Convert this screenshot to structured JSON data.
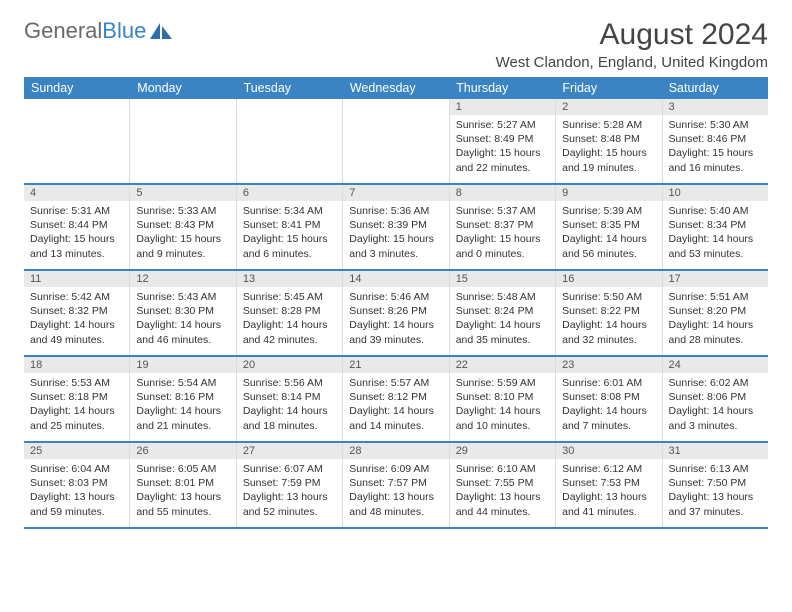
{
  "brand": {
    "part1": "General",
    "part2": "Blue"
  },
  "title": "August 2024",
  "location": "West Clandon, England, United Kingdom",
  "colors": {
    "header_bg": "#3a84c4",
    "daynum_bg": "#e9e9e9",
    "divider": "#3a84c4",
    "cell_border": "#dcdcdc",
    "text": "#333333",
    "title_text": "#444444"
  },
  "weekdays": [
    "Sunday",
    "Monday",
    "Tuesday",
    "Wednesday",
    "Thursday",
    "Friday",
    "Saturday"
  ],
  "weeks": [
    [
      {
        "n": "",
        "sr": "",
        "ss": "",
        "dl": ""
      },
      {
        "n": "",
        "sr": "",
        "ss": "",
        "dl": ""
      },
      {
        "n": "",
        "sr": "",
        "ss": "",
        "dl": ""
      },
      {
        "n": "",
        "sr": "",
        "ss": "",
        "dl": ""
      },
      {
        "n": "1",
        "sr": "Sunrise: 5:27 AM",
        "ss": "Sunset: 8:49 PM",
        "dl": "Daylight: 15 hours and 22 minutes."
      },
      {
        "n": "2",
        "sr": "Sunrise: 5:28 AM",
        "ss": "Sunset: 8:48 PM",
        "dl": "Daylight: 15 hours and 19 minutes."
      },
      {
        "n": "3",
        "sr": "Sunrise: 5:30 AM",
        "ss": "Sunset: 8:46 PM",
        "dl": "Daylight: 15 hours and 16 minutes."
      }
    ],
    [
      {
        "n": "4",
        "sr": "Sunrise: 5:31 AM",
        "ss": "Sunset: 8:44 PM",
        "dl": "Daylight: 15 hours and 13 minutes."
      },
      {
        "n": "5",
        "sr": "Sunrise: 5:33 AM",
        "ss": "Sunset: 8:43 PM",
        "dl": "Daylight: 15 hours and 9 minutes."
      },
      {
        "n": "6",
        "sr": "Sunrise: 5:34 AM",
        "ss": "Sunset: 8:41 PM",
        "dl": "Daylight: 15 hours and 6 minutes."
      },
      {
        "n": "7",
        "sr": "Sunrise: 5:36 AM",
        "ss": "Sunset: 8:39 PM",
        "dl": "Daylight: 15 hours and 3 minutes."
      },
      {
        "n": "8",
        "sr": "Sunrise: 5:37 AM",
        "ss": "Sunset: 8:37 PM",
        "dl": "Daylight: 15 hours and 0 minutes."
      },
      {
        "n": "9",
        "sr": "Sunrise: 5:39 AM",
        "ss": "Sunset: 8:35 PM",
        "dl": "Daylight: 14 hours and 56 minutes."
      },
      {
        "n": "10",
        "sr": "Sunrise: 5:40 AM",
        "ss": "Sunset: 8:34 PM",
        "dl": "Daylight: 14 hours and 53 minutes."
      }
    ],
    [
      {
        "n": "11",
        "sr": "Sunrise: 5:42 AM",
        "ss": "Sunset: 8:32 PM",
        "dl": "Daylight: 14 hours and 49 minutes."
      },
      {
        "n": "12",
        "sr": "Sunrise: 5:43 AM",
        "ss": "Sunset: 8:30 PM",
        "dl": "Daylight: 14 hours and 46 minutes."
      },
      {
        "n": "13",
        "sr": "Sunrise: 5:45 AM",
        "ss": "Sunset: 8:28 PM",
        "dl": "Daylight: 14 hours and 42 minutes."
      },
      {
        "n": "14",
        "sr": "Sunrise: 5:46 AM",
        "ss": "Sunset: 8:26 PM",
        "dl": "Daylight: 14 hours and 39 minutes."
      },
      {
        "n": "15",
        "sr": "Sunrise: 5:48 AM",
        "ss": "Sunset: 8:24 PM",
        "dl": "Daylight: 14 hours and 35 minutes."
      },
      {
        "n": "16",
        "sr": "Sunrise: 5:50 AM",
        "ss": "Sunset: 8:22 PM",
        "dl": "Daylight: 14 hours and 32 minutes."
      },
      {
        "n": "17",
        "sr": "Sunrise: 5:51 AM",
        "ss": "Sunset: 8:20 PM",
        "dl": "Daylight: 14 hours and 28 minutes."
      }
    ],
    [
      {
        "n": "18",
        "sr": "Sunrise: 5:53 AM",
        "ss": "Sunset: 8:18 PM",
        "dl": "Daylight: 14 hours and 25 minutes."
      },
      {
        "n": "19",
        "sr": "Sunrise: 5:54 AM",
        "ss": "Sunset: 8:16 PM",
        "dl": "Daylight: 14 hours and 21 minutes."
      },
      {
        "n": "20",
        "sr": "Sunrise: 5:56 AM",
        "ss": "Sunset: 8:14 PM",
        "dl": "Daylight: 14 hours and 18 minutes."
      },
      {
        "n": "21",
        "sr": "Sunrise: 5:57 AM",
        "ss": "Sunset: 8:12 PM",
        "dl": "Daylight: 14 hours and 14 minutes."
      },
      {
        "n": "22",
        "sr": "Sunrise: 5:59 AM",
        "ss": "Sunset: 8:10 PM",
        "dl": "Daylight: 14 hours and 10 minutes."
      },
      {
        "n": "23",
        "sr": "Sunrise: 6:01 AM",
        "ss": "Sunset: 8:08 PM",
        "dl": "Daylight: 14 hours and 7 minutes."
      },
      {
        "n": "24",
        "sr": "Sunrise: 6:02 AM",
        "ss": "Sunset: 8:06 PM",
        "dl": "Daylight: 14 hours and 3 minutes."
      }
    ],
    [
      {
        "n": "25",
        "sr": "Sunrise: 6:04 AM",
        "ss": "Sunset: 8:03 PM",
        "dl": "Daylight: 13 hours and 59 minutes."
      },
      {
        "n": "26",
        "sr": "Sunrise: 6:05 AM",
        "ss": "Sunset: 8:01 PM",
        "dl": "Daylight: 13 hours and 55 minutes."
      },
      {
        "n": "27",
        "sr": "Sunrise: 6:07 AM",
        "ss": "Sunset: 7:59 PM",
        "dl": "Daylight: 13 hours and 52 minutes."
      },
      {
        "n": "28",
        "sr": "Sunrise: 6:09 AM",
        "ss": "Sunset: 7:57 PM",
        "dl": "Daylight: 13 hours and 48 minutes."
      },
      {
        "n": "29",
        "sr": "Sunrise: 6:10 AM",
        "ss": "Sunset: 7:55 PM",
        "dl": "Daylight: 13 hours and 44 minutes."
      },
      {
        "n": "30",
        "sr": "Sunrise: 6:12 AM",
        "ss": "Sunset: 7:53 PM",
        "dl": "Daylight: 13 hours and 41 minutes."
      },
      {
        "n": "31",
        "sr": "Sunrise: 6:13 AM",
        "ss": "Sunset: 7:50 PM",
        "dl": "Daylight: 13 hours and 37 minutes."
      }
    ]
  ]
}
